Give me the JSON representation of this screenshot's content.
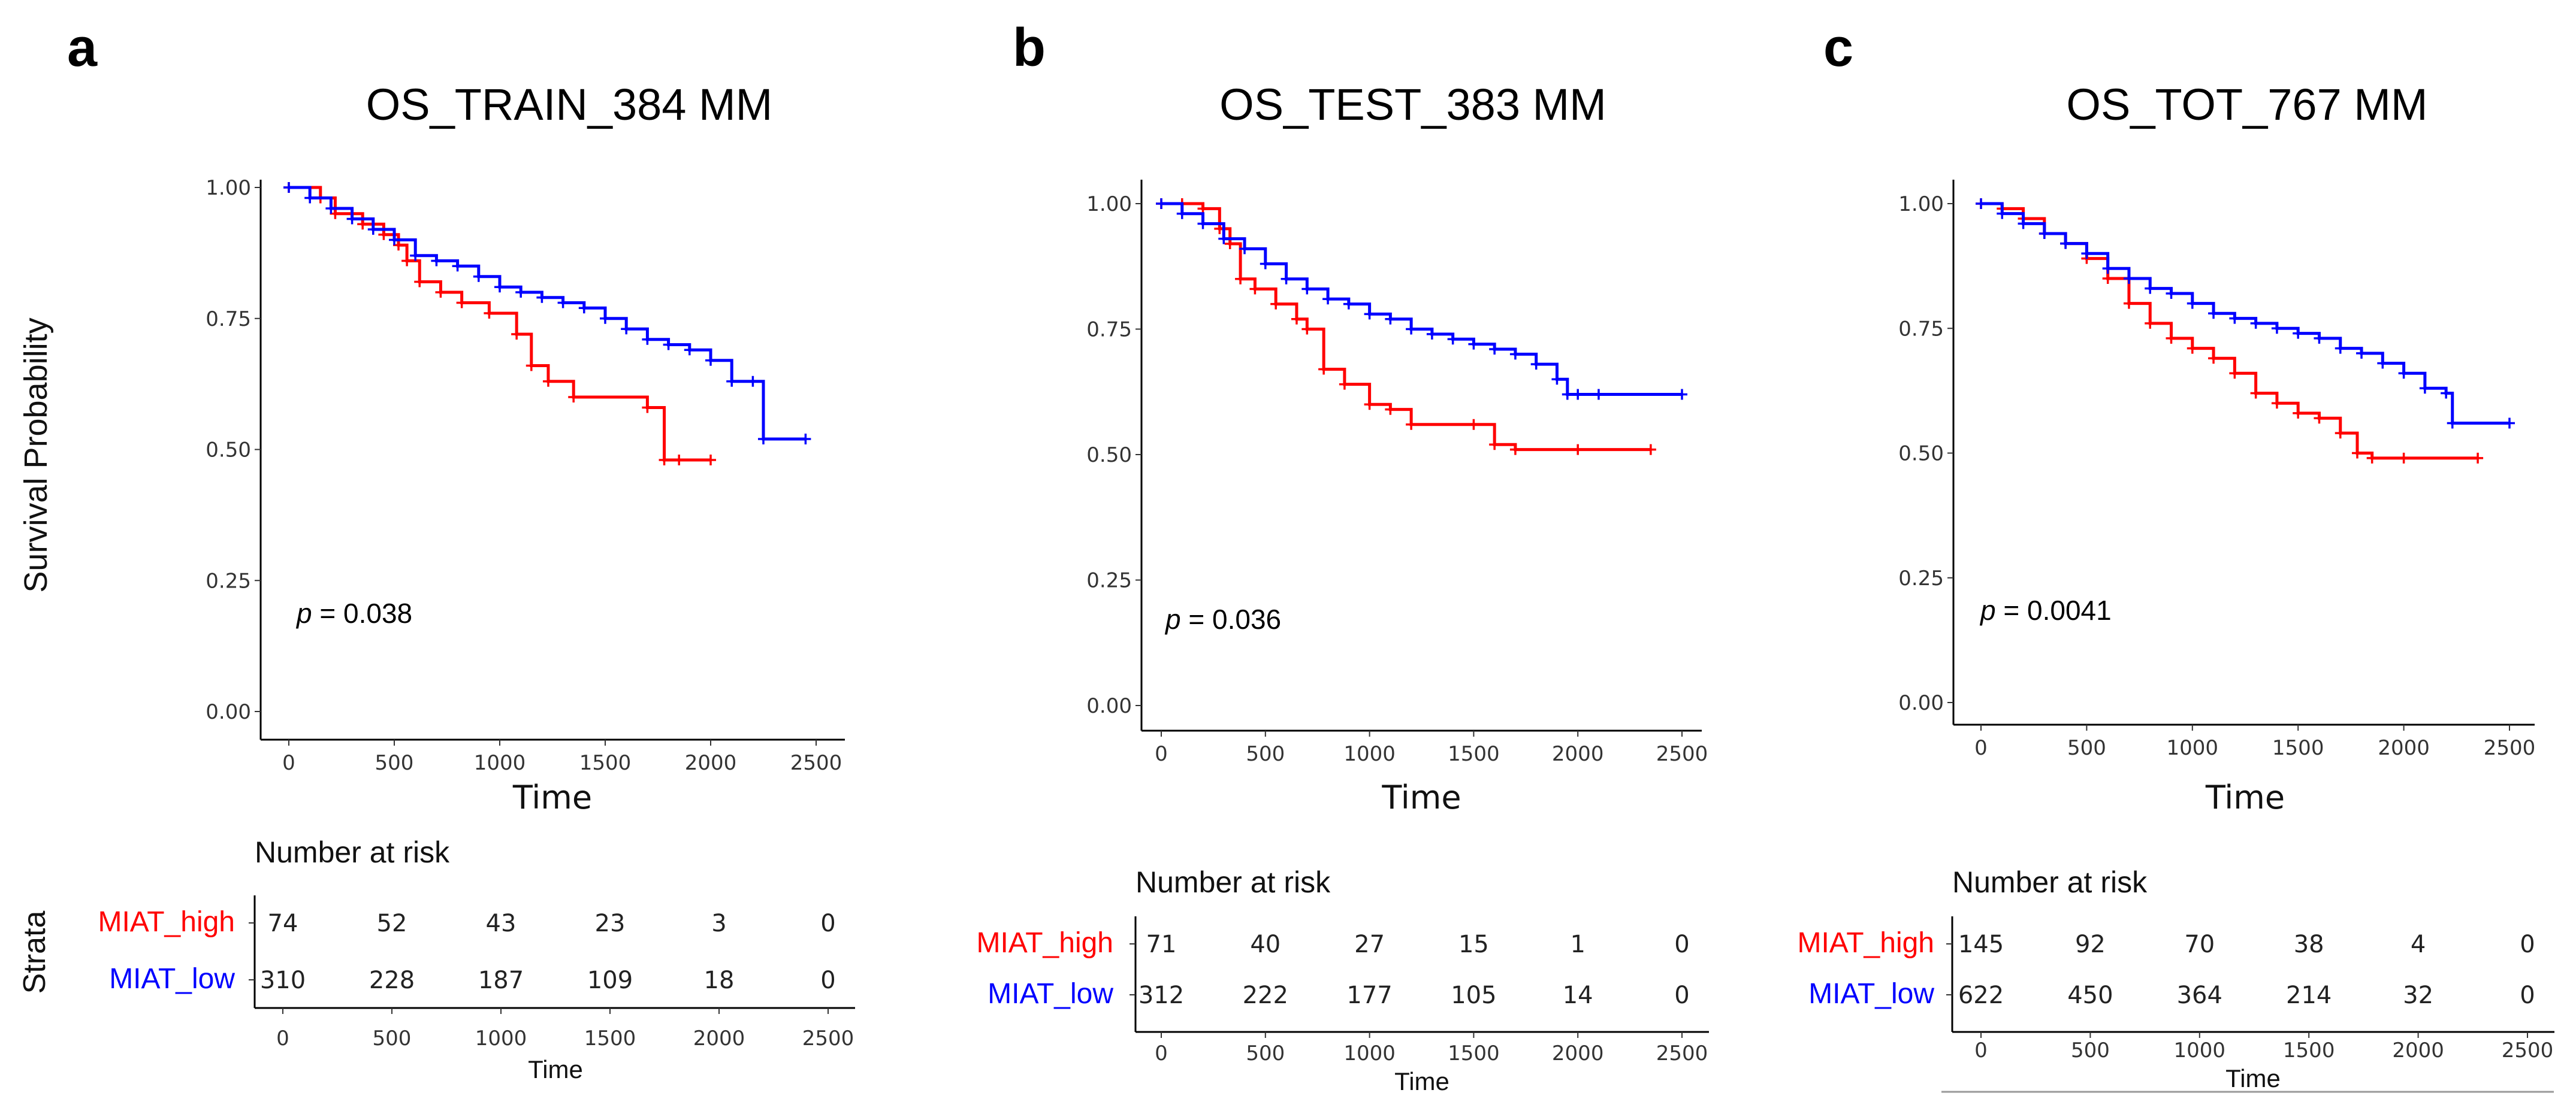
{
  "chart_data": [
    {
      "type": "line",
      "panel": "a",
      "title": "OS_TRAIN_384 MM",
      "xlabel": "Time",
      "ylabel": "Survival Probability",
      "xlim": [
        0,
        2500
      ],
      "ylim": [
        0,
        1
      ],
      "x_ticks": [
        "0",
        "500",
        "1000",
        "1500",
        "2000",
        "2500"
      ],
      "y_ticks": [
        "0.00",
        "0.25",
        "0.50",
        "0.75",
        "1.00"
      ],
      "p_label": "p",
      "p_text": " = 0.038",
      "series": [
        {
          "name": "MIAT_high",
          "color": "#ff0000",
          "x": [
            0,
            150,
            220,
            350,
            450,
            520,
            560,
            620,
            720,
            820,
            950,
            1080,
            1150,
            1230,
            1350,
            1700,
            1780,
            1850,
            2000
          ],
          "y": [
            1.0,
            0.98,
            0.95,
            0.93,
            0.91,
            0.89,
            0.86,
            0.82,
            0.8,
            0.78,
            0.76,
            0.72,
            0.66,
            0.63,
            0.6,
            0.58,
            0.48,
            0.48,
            0.48
          ]
        },
        {
          "name": "MIAT_low",
          "color": "#0000ff",
          "x": [
            0,
            100,
            200,
            300,
            400,
            500,
            600,
            700,
            800,
            900,
            1000,
            1100,
            1200,
            1300,
            1400,
            1500,
            1600,
            1700,
            1800,
            1900,
            2000,
            2100,
            2200,
            2250,
            2450
          ],
          "y": [
            1.0,
            0.98,
            0.96,
            0.94,
            0.92,
            0.9,
            0.87,
            0.86,
            0.85,
            0.83,
            0.81,
            0.8,
            0.79,
            0.78,
            0.77,
            0.75,
            0.73,
            0.71,
            0.7,
            0.69,
            0.67,
            0.63,
            0.63,
            0.52,
            0.52
          ]
        }
      ],
      "risk_table": {
        "title": "Number at risk",
        "strata_label": "Strata",
        "time_points": [
          "0",
          "500",
          "1000",
          "1500",
          "2000",
          "2500"
        ],
        "rows": [
          {
            "name": "MIAT_high",
            "values": [
              "74",
              "52",
              "43",
              "23",
              "3",
              "0"
            ]
          },
          {
            "name": "MIAT_low",
            "values": [
              "310",
              "228",
              "187",
              "109",
              "18",
              "0"
            ]
          }
        ],
        "xlabel": "Time"
      }
    },
    {
      "type": "line",
      "panel": "b",
      "title": "OS_TEST_383 MM",
      "xlabel": "Time",
      "ylabel": "",
      "xlim": [
        0,
        2500
      ],
      "ylim": [
        0,
        1
      ],
      "x_ticks": [
        "0",
        "500",
        "1000",
        "1500",
        "2000",
        "2500"
      ],
      "y_ticks": [
        "0.00",
        "0.25",
        "0.50",
        "0.75",
        "1.00"
      ],
      "p_label": "p",
      "p_text": " = 0.036",
      "series": [
        {
          "name": "MIAT_high",
          "color": "#ff0000",
          "x": [
            0,
            100,
            200,
            280,
            330,
            380,
            450,
            550,
            650,
            700,
            780,
            880,
            1000,
            1100,
            1200,
            1500,
            1600,
            1700,
            2000,
            2350
          ],
          "y": [
            1.0,
            1.0,
            0.99,
            0.95,
            0.92,
            0.85,
            0.83,
            0.8,
            0.77,
            0.75,
            0.67,
            0.64,
            0.6,
            0.59,
            0.56,
            0.56,
            0.52,
            0.51,
            0.51,
            0.51
          ]
        },
        {
          "name": "MIAT_low",
          "color": "#0000ff",
          "x": [
            0,
            100,
            200,
            300,
            400,
            500,
            600,
            700,
            800,
            900,
            1000,
            1100,
            1200,
            1300,
            1400,
            1500,
            1600,
            1700,
            1800,
            1900,
            1950,
            2000,
            2100,
            2500
          ],
          "y": [
            1.0,
            0.98,
            0.96,
            0.93,
            0.91,
            0.88,
            0.85,
            0.83,
            0.81,
            0.8,
            0.78,
            0.77,
            0.75,
            0.74,
            0.73,
            0.72,
            0.71,
            0.7,
            0.68,
            0.65,
            0.62,
            0.62,
            0.62,
            0.62
          ]
        }
      ],
      "risk_table": {
        "title": "Number at risk",
        "strata_label": "",
        "time_points": [
          "0",
          "500",
          "1000",
          "1500",
          "2000",
          "2500"
        ],
        "rows": [
          {
            "name": "MIAT_high",
            "values": [
              "71",
              "40",
              "27",
              "15",
              "1",
              "0"
            ]
          },
          {
            "name": "MIAT_low",
            "values": [
              "312",
              "222",
              "177",
              "105",
              "14",
              "0"
            ]
          }
        ],
        "xlabel": "Time"
      }
    },
    {
      "type": "line",
      "panel": "c",
      "title": "OS_TOT_767 MM",
      "xlabel": "Time",
      "ylabel": "",
      "xlim": [
        0,
        2500
      ],
      "ylim": [
        0,
        1
      ],
      "x_ticks": [
        "0",
        "500",
        "1000",
        "1500",
        "2000",
        "2500"
      ],
      "y_ticks": [
        "0.00",
        "0.25",
        "0.50",
        "0.75",
        "1.00"
      ],
      "p_label": "p",
      "p_text": " = 0.0041",
      "series": [
        {
          "name": "MIAT_high",
          "color": "#ff0000",
          "x": [
            0,
            100,
            200,
            300,
            400,
            500,
            600,
            700,
            800,
            900,
            1000,
            1100,
            1200,
            1300,
            1400,
            1500,
            1600,
            1700,
            1780,
            1850,
            2000,
            2350
          ],
          "y": [
            1.0,
            0.99,
            0.97,
            0.94,
            0.92,
            0.89,
            0.85,
            0.8,
            0.76,
            0.73,
            0.71,
            0.69,
            0.66,
            0.62,
            0.6,
            0.58,
            0.57,
            0.54,
            0.5,
            0.49,
            0.49,
            0.49
          ]
        },
        {
          "name": "MIAT_low",
          "color": "#0000ff",
          "x": [
            0,
            100,
            200,
            300,
            400,
            500,
            600,
            700,
            800,
            900,
            1000,
            1100,
            1200,
            1300,
            1400,
            1500,
            1600,
            1700,
            1800,
            1900,
            2000,
            2100,
            2200,
            2230,
            2500
          ],
          "y": [
            1.0,
            0.98,
            0.96,
            0.94,
            0.92,
            0.9,
            0.87,
            0.85,
            0.83,
            0.82,
            0.8,
            0.78,
            0.77,
            0.76,
            0.75,
            0.74,
            0.73,
            0.71,
            0.7,
            0.68,
            0.66,
            0.63,
            0.62,
            0.56,
            0.56
          ]
        }
      ],
      "risk_table": {
        "title": "Number at risk",
        "strata_label": "",
        "time_points": [
          "0",
          "500",
          "1000",
          "1500",
          "2000",
          "2500"
        ],
        "rows": [
          {
            "name": "MIAT_high",
            "values": [
              "145",
              "92",
              "70",
              "38",
              "4",
              "0"
            ]
          },
          {
            "name": "MIAT_low",
            "values": [
              "622",
              "450",
              "364",
              "214",
              "32",
              "0"
            ]
          }
        ],
        "xlabel": "Time"
      }
    }
  ]
}
